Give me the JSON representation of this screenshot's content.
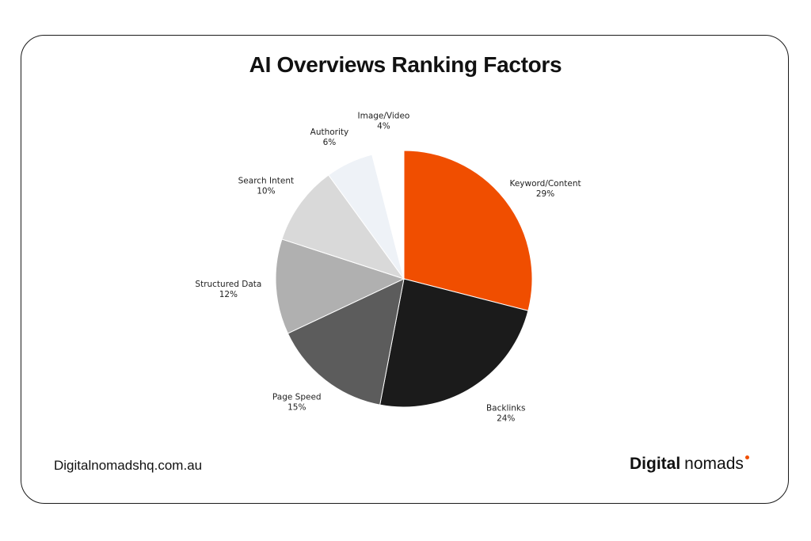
{
  "chart_data": {
    "type": "pie",
    "title": "AI Overviews Ranking Factors",
    "slices": [
      {
        "label": "Keyword/Content",
        "value": 29,
        "value_label": "29%",
        "color": "#f04e00"
      },
      {
        "label": "Backlinks",
        "value": 24,
        "value_label": "24%",
        "color": "#1b1b1b"
      },
      {
        "label": "Page Speed",
        "value": 15,
        "value_label": "15%",
        "color": "#5c5c5c"
      },
      {
        "label": "Structured Data",
        "value": 12,
        "value_label": "12%",
        "color": "#b0b0b0"
      },
      {
        "label": "Search Intent",
        "value": 10,
        "value_label": "10%",
        "color": "#d9d9d9"
      },
      {
        "label": "Authority",
        "value": 6,
        "value_label": "6%",
        "color": "#eef2f7"
      },
      {
        "label": "Image/Video",
        "value": 4,
        "value_label": "4%",
        "color": "#ffffff"
      }
    ],
    "start_angle": "12 o'clock",
    "direction": "clockwise",
    "legend": "none"
  },
  "footer": {
    "site_url": "Digitalnomadshq.com.au",
    "brand_first": "Digital",
    "brand_second": "nomads",
    "brand_dot_color": "#f04e00"
  }
}
